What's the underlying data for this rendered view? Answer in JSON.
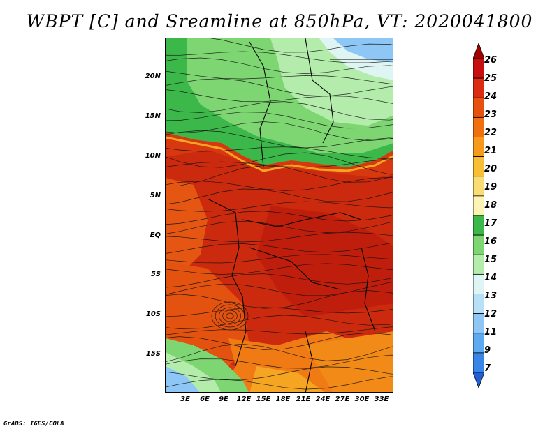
{
  "title": "WBPT [C] and Sreamline at 850hPa, VT: 2020041800",
  "footer": "GrADS: IGES/COLA",
  "map": {
    "variable": "Wet-bulb potential temperature",
    "level": "850hPa",
    "overlay": "streamlines",
    "lat_ticks": [
      "20N",
      "15N",
      "10N",
      "5N",
      "EQ",
      "5S",
      "10S",
      "15S"
    ],
    "lon_ticks": [
      "3E",
      "6E",
      "9E",
      "12E",
      "15E",
      "18E",
      "21E",
      "24E",
      "27E",
      "30E",
      "33E"
    ],
    "lat_range": [
      -20,
      25
    ],
    "lon_range": [
      0,
      35
    ]
  },
  "colorbar": {
    "labels": [
      "26",
      "25",
      "24",
      "23",
      "22",
      "21",
      "20",
      "19",
      "18",
      "17",
      "16",
      "15",
      "14",
      "13",
      "12",
      "11",
      "9",
      "7"
    ],
    "colors": [
      "#a50000",
      "#c80f0f",
      "#dc2b13",
      "#e8500f",
      "#f07010",
      "#f59a1a",
      "#f8be34",
      "#fadd72",
      "#fdf3b5",
      "#3cb84a",
      "#7ed672",
      "#b3ecab",
      "#dff5f4",
      "#b7dff8",
      "#8ec7f6",
      "#5eaaf0",
      "#3a86e6",
      "#1f5fd8"
    ]
  }
}
